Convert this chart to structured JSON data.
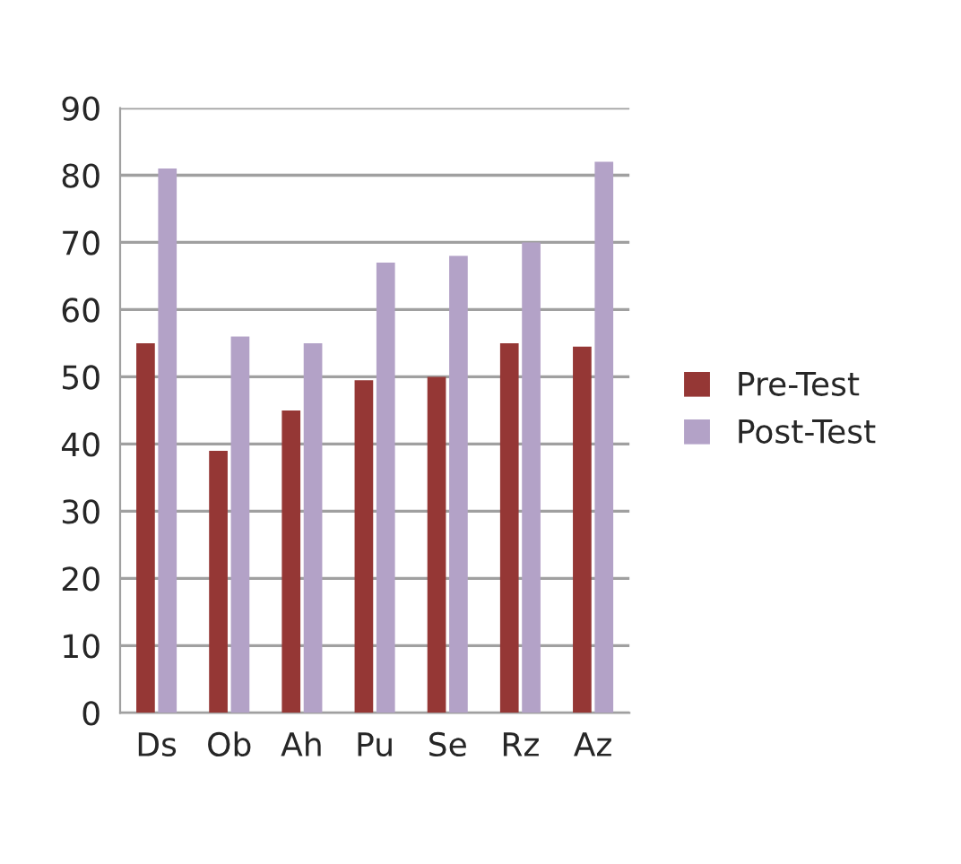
{
  "chart_data": {
    "type": "bar",
    "categories": [
      "Ds",
      "Ob",
      "Ah",
      "Pu",
      "Se",
      "Rz",
      "Az"
    ],
    "series": [
      {
        "name": "Pre-Test",
        "color": "#953735",
        "values": [
          55,
          39,
          45,
          49.5,
          50,
          55,
          54.5
        ]
      },
      {
        "name": "Post-Test",
        "color": "#b3a2c7",
        "values": [
          81,
          56,
          55,
          67,
          68,
          70,
          82
        ]
      }
    ],
    "ylim": [
      0,
      90
    ],
    "yticks": [
      0,
      10,
      20,
      30,
      40,
      50,
      60,
      70,
      80,
      90
    ],
    "grid": "y",
    "legend": "right"
  }
}
